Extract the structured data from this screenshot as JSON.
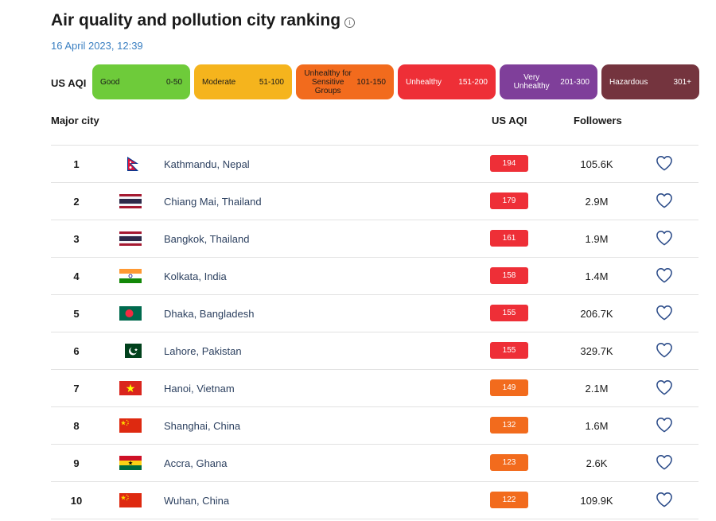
{
  "page": {
    "title": "Air quality and pollution city ranking",
    "info_icon": "info-icon",
    "timestamp": "16 April 2023, 12:39"
  },
  "legend": {
    "label": "US AQI",
    "levels": [
      {
        "name": "Good",
        "range": "0-50",
        "color": "#6ecb3a"
      },
      {
        "name": "Moderate",
        "range": "51-100",
        "color": "#f5b41d"
      },
      {
        "name": "Unhealthy for Sensitive Groups",
        "range": "101-150",
        "color": "#f26b1d"
      },
      {
        "name": "Unhealthy",
        "range": "151-200",
        "color": "#ee2f37"
      },
      {
        "name": "Very Unhealthy",
        "range": "201-300",
        "color": "#7f3f9a"
      },
      {
        "name": "Hazardous",
        "range": "301+",
        "color": "#74343e"
      }
    ]
  },
  "table": {
    "headers": {
      "city": "Major city",
      "aqi": "US AQI",
      "followers": "Followers"
    },
    "rows": [
      {
        "rank": "1",
        "flag": "nepal-flag-icon",
        "city": "Kathmandu, Nepal",
        "aqi": "194",
        "aqi_color": "#ee2f37",
        "followers": "105.6K"
      },
      {
        "rank": "2",
        "flag": "thailand-flag-icon",
        "city": "Chiang Mai, Thailand",
        "aqi": "179",
        "aqi_color": "#ee2f37",
        "followers": "2.9M"
      },
      {
        "rank": "3",
        "flag": "thailand-flag-icon",
        "city": "Bangkok, Thailand",
        "aqi": "161",
        "aqi_color": "#ee2f37",
        "followers": "1.9M"
      },
      {
        "rank": "4",
        "flag": "india-flag-icon",
        "city": "Kolkata, India",
        "aqi": "158",
        "aqi_color": "#ee2f37",
        "followers": "1.4M"
      },
      {
        "rank": "5",
        "flag": "bangladesh-flag-icon",
        "city": "Dhaka, Bangladesh",
        "aqi": "155",
        "aqi_color": "#ee2f37",
        "followers": "206.7K"
      },
      {
        "rank": "6",
        "flag": "pakistan-flag-icon",
        "city": "Lahore, Pakistan",
        "aqi": "155",
        "aqi_color": "#ee2f37",
        "followers": "329.7K"
      },
      {
        "rank": "7",
        "flag": "vietnam-flag-icon",
        "city": "Hanoi, Vietnam",
        "aqi": "149",
        "aqi_color": "#f26b1d",
        "followers": "2.1M"
      },
      {
        "rank": "8",
        "flag": "china-flag-icon",
        "city": "Shanghai, China",
        "aqi": "132",
        "aqi_color": "#f26b1d",
        "followers": "1.6M"
      },
      {
        "rank": "9",
        "flag": "ghana-flag-icon",
        "city": "Accra, Ghana",
        "aqi": "123",
        "aqi_color": "#f26b1d",
        "followers": "2.6K"
      },
      {
        "rank": "10",
        "flag": "china-flag-icon",
        "city": "Wuhan, China",
        "aqi": "122",
        "aqi_color": "#f26b1d",
        "followers": "109.9K"
      }
    ]
  },
  "icons": {
    "follow": "heart-icon"
  }
}
